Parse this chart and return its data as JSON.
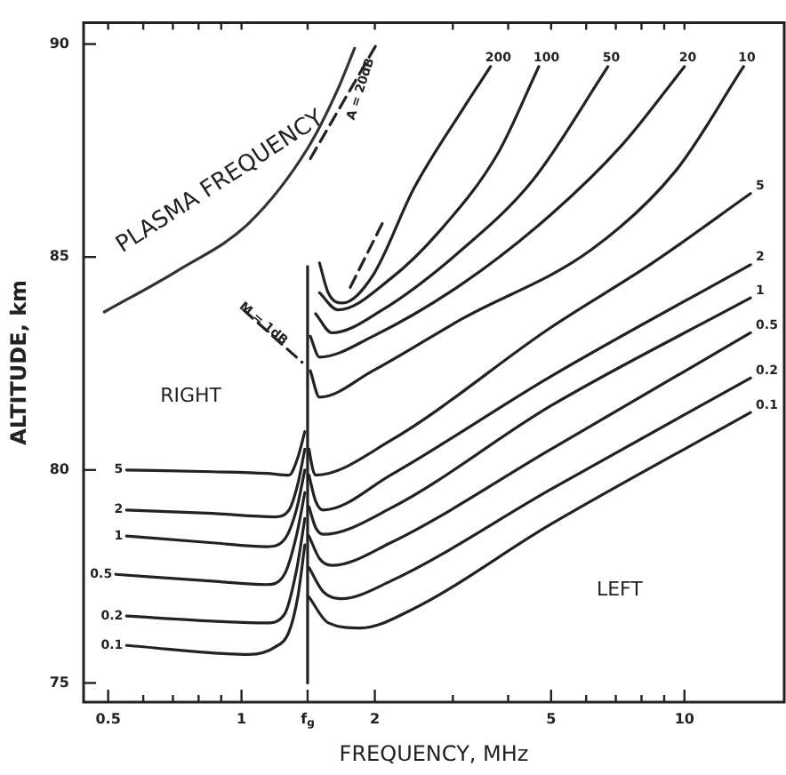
{
  "chart_data": {
    "type": "line",
    "xlabel": "FREQUENCY, MHz",
    "ylabel": "ALTITUDE, km",
    "log": "x",
    "grid": false,
    "legend": false,
    "marker": "none",
    "line_style": "solid",
    "xlim": [
      0.44,
      16.8
    ],
    "ylim": [
      74.55,
      90.5
    ],
    "xticks": [
      0.5,
      {
        "value": 0.6,
        "label": null
      },
      {
        "value": 0.7,
        "label": null
      },
      {
        "value": 0.8,
        "label": null
      },
      {
        "value": 0.9,
        "label": null
      },
      1,
      {
        "value": 1.41,
        "label": "f$_{g}$"
      },
      2,
      {
        "value": 3,
        "label": null
      },
      {
        "value": 4,
        "label": null
      },
      5,
      {
        "value": 6,
        "label": null
      },
      {
        "value": 7,
        "label": null
      },
      {
        "value": 8,
        "label": null
      },
      {
        "value": 9,
        "label": null
      },
      10
    ],
    "yticks": [
      75,
      80,
      85,
      90
    ],
    "series": [
      {
        "name": "5",
        "color": "#222222",
        "x": [
          0.55,
          0.86,
          1.14,
          1.28,
          1.34,
          1.39
        ],
        "values": [
          80.0,
          79.96,
          79.92,
          79.88,
          80.29,
          80.9
        ]
      },
      {
        "name": "2",
        "color": "#222222",
        "x": [
          0.55,
          0.86,
          1.19,
          1.28,
          1.34,
          1.39
        ],
        "values": [
          79.06,
          78.98,
          78.9,
          79.06,
          79.67,
          80.49
        ]
      },
      {
        "name": "1",
        "color": "#222222",
        "x": [
          0.55,
          0.86,
          1.14,
          1.25,
          1.33,
          1.39
        ],
        "values": [
          78.45,
          78.29,
          78.2,
          78.37,
          79.06,
          80.0
        ]
      },
      {
        "name": "0.5",
        "color": "#222222",
        "x": [
          0.52,
          0.86,
          1.14,
          1.25,
          1.33,
          1.39
        ],
        "values": [
          77.55,
          77.39,
          77.31,
          77.55,
          78.45,
          79.47
        ]
      },
      {
        "name": "0.2",
        "color": "#222222",
        "x": [
          0.55,
          0.86,
          1.14,
          1.25,
          1.33,
          1.39
        ],
        "values": [
          76.57,
          76.45,
          76.41,
          76.61,
          77.63,
          78.86
        ]
      },
      {
        "name": "0.1",
        "color": "#222222",
        "x": [
          0.55,
          1.04,
          1.19,
          1.28,
          1.34,
          1.39
        ],
        "values": [
          75.88,
          75.67,
          75.84,
          76.2,
          77.02,
          78.24
        ]
      },
      {
        "name": "0.1",
        "color": "#222222",
        "x": [
          1.42,
          1.57,
          1.86,
          2.39,
          5.0,
          14.1
        ],
        "values": [
          77.02,
          76.41,
          76.29,
          76.69,
          78.73,
          81.35
        ]
      },
      {
        "name": "0.2",
        "color": "#222222",
        "x": [
          1.42,
          1.53,
          1.68,
          2.17,
          5.0,
          14.1
        ],
        "values": [
          77.71,
          77.14,
          76.98,
          77.39,
          79.55,
          82.16
        ]
      },
      {
        "name": "0.5",
        "color": "#222222",
        "x": [
          1.42,
          1.5,
          1.6,
          2.17,
          5.0,
          14.1
        ],
        "values": [
          78.45,
          77.92,
          77.76,
          78.29,
          80.49,
          83.22
        ]
      },
      {
        "name": "1",
        "color": "#222222",
        "x": [
          1.42,
          1.47,
          1.53,
          2.17,
          5.0,
          14.1
        ],
        "values": [
          79.14,
          78.65,
          78.49,
          79.1,
          81.51,
          84.04
        ]
      },
      {
        "name": "2",
        "color": "#222222",
        "x": [
          1.42,
          1.47,
          1.53,
          2.17,
          5.0,
          14.1
        ],
        "values": [
          79.88,
          79.27,
          79.06,
          79.88,
          82.2,
          84.82
        ]
      },
      {
        "name": "5",
        "color": "#222222",
        "x": [
          1.42,
          1.45,
          1.47,
          2.17,
          5.0,
          8.47,
          14.1
        ],
        "values": [
          80.49,
          80.0,
          79.88,
          80.69,
          83.35,
          84.86,
          86.49
        ]
      },
      {
        "name": "10",
        "color": "#222222",
        "x": [
          1.43,
          1.5,
          1.98,
          3.15,
          6.18,
          9.55,
          13.6
        ],
        "values": [
          82.33,
          81.71,
          82.33,
          83.55,
          85.18,
          87.02,
          89.47
        ]
      },
      {
        "name": "20",
        "color": "#222222",
        "x": [
          1.43,
          1.5,
          1.98,
          3.15,
          5.0,
          7.23,
          10
        ],
        "values": [
          83.14,
          82.65,
          83.14,
          84.37,
          86.0,
          87.63,
          89.47
        ]
      },
      {
        "name": "50",
        "color": "#222222",
        "x": [
          1.47,
          1.6,
          2.08,
          3.15,
          4.56,
          6.72
        ],
        "values": [
          83.67,
          83.22,
          83.76,
          85.18,
          86.82,
          89.47
        ]
      },
      {
        "name": "100",
        "color": "#222222",
        "x": [
          1.5,
          1.65,
          2.17,
          2.79,
          3.79,
          4.69
        ],
        "values": [
          84.16,
          83.76,
          84.49,
          85.59,
          87.43,
          89.47
        ]
      },
      {
        "name": "200",
        "color": "#222222",
        "x": [
          1.5,
          1.57,
          1.69,
          1.98,
          2.45,
          3.15,
          3.65
        ],
        "values": [
          84.86,
          84.16,
          83.92,
          84.57,
          86.61,
          88.45,
          89.47
        ]
      },
      {
        "color": "#222222",
        "x": [
          1.41,
          1.41
        ],
        "values": [
          84.78,
          75.0
        ]
      },
      {
        "color": "#333333",
        "x": [
          0.49,
          0.72,
          1.04,
          1.41,
          1.65,
          1.8
        ],
        "values": [
          83.71,
          84.69,
          85.8,
          87.55,
          88.94,
          89.9
        ]
      },
      {
        "color": "#222222",
        "line_style": "dashed",
        "x": [
          1.43,
          2.02
        ],
        "values": [
          87.31,
          90.0
        ]
      },
      {
        "color": "#222222",
        "line_style": "dashed",
        "x": [
          1.76,
          2.11
        ],
        "values": [
          84.29,
          85.92
        ]
      },
      {
        "color": "#222222",
        "line_style": "dashed",
        "x": [
          1.01,
          1.37
        ],
        "values": [
          83.76,
          82.53
        ]
      }
    ],
    "annotations": [
      "PLASMA FREQUENCY",
      "RIGHT",
      "LEFT",
      {
        "text": "A = 20dB",
        "x": 1.86,
        "y": 88.94
      },
      {
        "text": "M = 1dB",
        "x": 1.12,
        "y": 83.43
      }
    ]
  }
}
